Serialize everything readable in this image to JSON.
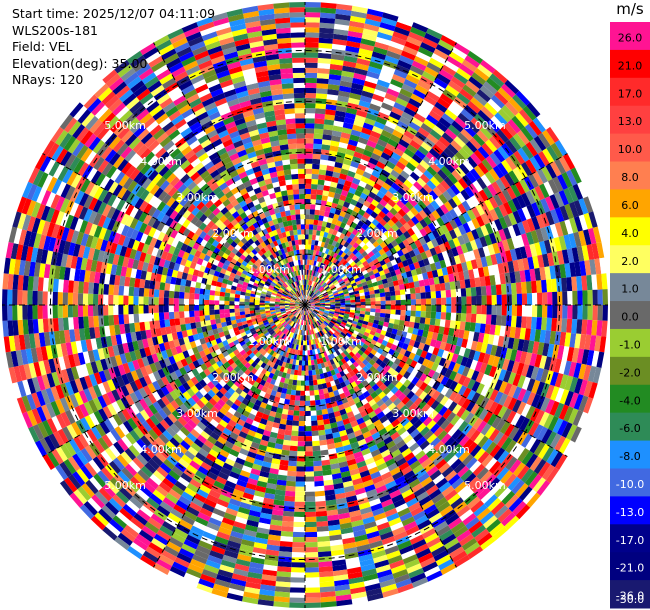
{
  "info": {
    "start_time": "Start time: 2025/12/07 04:11:09",
    "instrument": "WLS200s-181",
    "field": "Field: VEL",
    "elevation": "Elevation(deg): 35.00",
    "nrays": "NRays: 120"
  },
  "colorbar": {
    "unit": "m/s",
    "bins": [
      {
        "label": "26.0",
        "color": "#ff1493"
      },
      {
        "label": "21.0",
        "color": "#ff0000"
      },
      {
        "label": "17.0",
        "color": "#ff2a2a"
      },
      {
        "label": "13.0",
        "color": "#ff4040"
      },
      {
        "label": "10.0",
        "color": "#ff5a4a"
      },
      {
        "label": "8.0",
        "color": "#ff7f50"
      },
      {
        "label": "6.0",
        "color": "#ffa500"
      },
      {
        "label": "4.0",
        "color": "#ffff00"
      },
      {
        "label": "2.0",
        "color": "#ffff60"
      },
      {
        "label": "1.0",
        "color": "#778899"
      },
      {
        "label": "0.0",
        "color": "#696969"
      },
      {
        "label": "-1.0",
        "color": "#9acd32"
      },
      {
        "label": "-2.0",
        "color": "#6b8e23"
      },
      {
        "label": "-4.0",
        "color": "#228b22"
      },
      {
        "label": "-6.0",
        "color": "#2e8b57"
      },
      {
        "label": "-8.0",
        "color": "#1e90ff"
      },
      {
        "label": "-10.0",
        "color": "#4169e1"
      },
      {
        "label": "-13.0",
        "color": "#0000ff"
      },
      {
        "label": "-17.0",
        "color": "#00008b"
      },
      {
        "label": "-21.0",
        "color": "#000080"
      },
      {
        "label": "-26.0",
        "color": "#191970"
      },
      {
        "label": "-30.0",
        "color": ""
      }
    ]
  },
  "chart_data": {
    "type": "heatmap",
    "projection": "polar-ppi",
    "field": "VEL",
    "nrays": 120,
    "range_rings_labels": [
      "1.00km",
      "2.00km",
      "3.00km",
      "4.00km",
      "5.00km"
    ],
    "max_range_km": 5.0,
    "spokes_deg": [
      0,
      30,
      60,
      90,
      120,
      150,
      180,
      210,
      240,
      270,
      300,
      330
    ]
  }
}
